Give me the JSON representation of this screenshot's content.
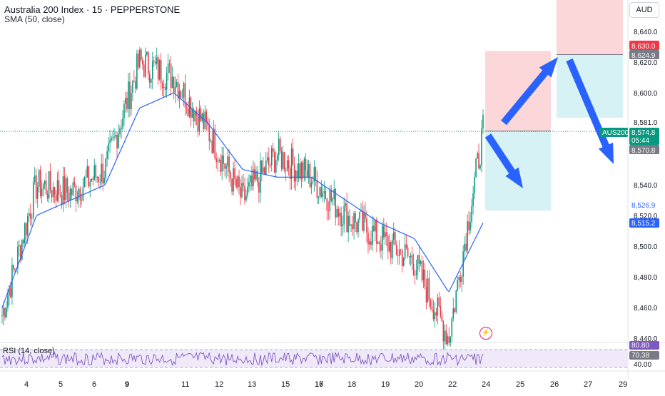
{
  "header": {
    "title": "Australia 200 Index · 15 · PEPPERSTONE",
    "indicator": "SMA (50, close)",
    "currency": "AUD"
  },
  "rsi": {
    "label": "RSI (14, close)",
    "values_shown": [
      "80.80",
      "70.38",
      "40.00"
    ]
  },
  "price_axis": {
    "ticks": [
      "8,640.0",
      "8,620.0",
      "8,600.0",
      "8,581.0",
      "8,540.0",
      "8,520.0",
      "8,500.0",
      "8,480.0",
      "8,460.0",
      "8,440.0"
    ]
  },
  "price_tags": [
    {
      "label": "8,630.0",
      "value": 8630.0,
      "color": "#f23645"
    },
    {
      "label": "8,624.9",
      "value": 8624.9,
      "color": "#787b86"
    },
    {
      "label": "8,581.0",
      "value": 8581.0,
      "color": "#ffffff"
    },
    {
      "label": "AUS200",
      "value": 8574.8,
      "color": "#089981"
    },
    {
      "label": "8,574.8",
      "value": 8574.8,
      "color": "#089981"
    },
    {
      "label": "05:44",
      "value": 8574.8,
      "color": "#089981"
    },
    {
      "label": "8,570.8",
      "value": 8570.8,
      "color": "#787b86"
    },
    {
      "label": "8,526.9",
      "value": 8526.9,
      "color": "#2962ff"
    },
    {
      "label": "8,515.2",
      "value": 8515.2,
      "color": "#2962ff"
    }
  ],
  "time_axis": {
    "ticks": [
      "4",
      "5",
      "6",
      "9",
      "11",
      "12",
      "13",
      "15",
      "16",
      "17",
      "18",
      "19",
      "20",
      "22",
      "24",
      "25",
      "26",
      "27",
      "29"
    ]
  },
  "chart_data": {
    "type": "line",
    "symbol": "AUS200",
    "timeframe": "15",
    "ylim": [
      8435,
      8655
    ],
    "x": [
      4,
      5,
      6,
      9,
      11,
      12,
      13,
      15,
      16,
      17,
      18,
      19,
      20,
      22,
      24
    ],
    "series": [
      {
        "name": "",
        "values": [
          8455,
          8540,
          8535,
          8550,
          8620,
          8610,
          8575,
          8530,
          8560,
          8545,
          8520,
          8505,
          8490,
          8440,
          8574.8
        ]
      },
      {
        "name": "SMA (50, close)",
        "values": [
          8460,
          8520,
          8530,
          8540,
          8590,
          8600,
          8580,
          8550,
          8545,
          8545,
          8530,
          8515,
          8505,
          8470,
          8515.2
        ]
      }
    ],
    "positions": [
      {
        "type": "short",
        "entry": 8570.8,
        "stop": 8630.0,
        "target": 8526.9
      },
      {
        "type": "short",
        "entry": 8624.9,
        "stop": 8655.0,
        "target": 8581.0
      }
    ],
    "grid": false,
    "legend": "top-left"
  },
  "colors": {
    "up": "#089981",
    "down": "#f23645",
    "sma": "#2962ff",
    "arrow": "#2962ff",
    "stop_zone": "#fbd3d6",
    "target_zone": "#d2f1f4",
    "rsi_line": "#7e57c2",
    "rsi_band": "#efe9f9"
  }
}
